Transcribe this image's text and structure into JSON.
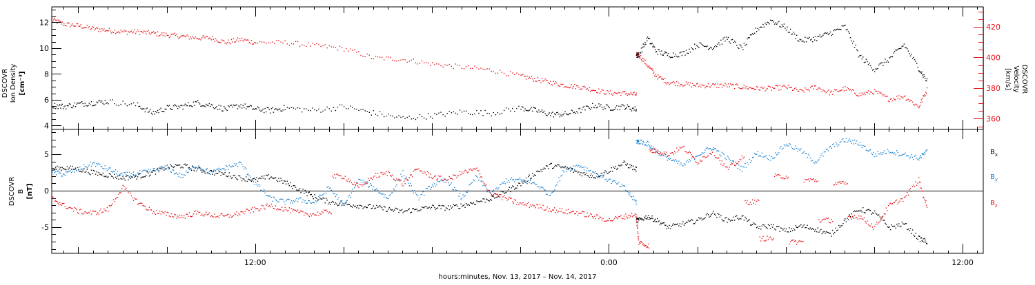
{
  "chart_data": [
    {
      "type": "scatter",
      "panel": "top",
      "x_unit": "hours from 2017-11-13 00:00",
      "xlim": [
        5.1,
        36.7
      ],
      "x_ticks": [
        12,
        24,
        36
      ],
      "x_tick_labels": [
        "12:00",
        "0:00",
        "12:00"
      ],
      "y_left": {
        "label_lines": [
          "DSCOVR",
          "Ion Density",
          "[cm⁻³]"
        ],
        "ylim": [
          3.7,
          13.2
        ],
        "ticks": [
          4,
          6,
          8,
          10,
          12
        ],
        "tick_labels": [
          "4",
          "6",
          "8",
          "10",
          "12"
        ],
        "color": "#000000"
      },
      "y_right": {
        "label_lines": [
          "DSCOVR",
          "Velocity",
          "[km/s]"
        ],
        "ylim": [
          353,
          433
        ],
        "ticks": [
          360,
          380,
          400,
          420
        ],
        "tick_labels": [
          "360",
          "380",
          "400",
          "420"
        ],
        "color": "#e8141b"
      },
      "series": [
        {
          "axis": "left",
          "color": "#000000",
          "x": [
            5.1,
            5.5,
            6.0,
            6.5,
            7.0,
            8.0,
            8.5,
            9.0,
            9.5,
            10.0,
            10.5,
            11.0,
            11.5,
            12.0,
            12.5,
            13.0,
            14.0,
            15.0,
            16.0,
            17.0,
            18.0,
            19.0,
            20.0,
            21.0,
            21.5,
            22.0,
            22.5,
            23.0,
            23.5,
            24.0,
            24.5,
            24.9,
            25.0,
            25.3,
            25.6,
            26.0,
            26.5,
            27.0,
            27.5,
            28.0,
            28.5,
            29.0,
            29.5,
            30.0,
            30.5,
            31.0,
            31.5,
            32.0,
            32.5,
            33.0,
            33.5,
            34.0,
            34.5,
            34.8
          ],
          "y": [
            5.6,
            5.5,
            5.7,
            5.8,
            5.9,
            5.6,
            5.0,
            5.4,
            5.5,
            5.8,
            5.6,
            5.3,
            5.6,
            5.3,
            5.2,
            5.4,
            5.2,
            5.5,
            5.0,
            4.6,
            4.8,
            5.1,
            5.0,
            5.4,
            5.2,
            4.9,
            4.9,
            5.2,
            5.6,
            5.4,
            5.5,
            5.3,
            9.5,
            10.8,
            9.8,
            9.5,
            9.6,
            10.3,
            10.1,
            10.8,
            10.0,
            11.5,
            12.2,
            11.6,
            10.6,
            10.8,
            11.2,
            11.7,
            9.4,
            8.4,
            9.2,
            10.3,
            8.5,
            7.4
          ]
        },
        {
          "axis": "right",
          "color": "#e8141b",
          "x": [
            5.1,
            5.5,
            6.0,
            6.5,
            7.0,
            7.5,
            8.0,
            8.5,
            9.0,
            9.5,
            10.0,
            10.5,
            11.0,
            11.5,
            12.0,
            13.0,
            14.0,
            15.0,
            16.0,
            17.0,
            18.0,
            19.0,
            20.0,
            21.0,
            21.5,
            22.0,
            22.5,
            23.0,
            23.5,
            24.0,
            24.5,
            24.9,
            25.0,
            25.3,
            25.6,
            26.0,
            26.5,
            27.0,
            27.5,
            28.0,
            28.5,
            29.0,
            29.5,
            30.0,
            30.5,
            31.0,
            31.5,
            32.0,
            32.5,
            33.0,
            33.5,
            34.0,
            34.5,
            34.8
          ],
          "y": [
            425,
            422,
            421,
            419,
            418,
            417,
            417,
            416,
            415,
            414,
            413,
            413,
            410,
            412,
            410,
            410,
            408,
            406,
            400,
            399,
            396,
            394,
            392,
            388,
            386,
            384,
            382,
            381,
            379,
            377,
            377,
            376,
            402,
            395,
            388,
            384,
            383,
            382,
            382,
            382,
            381,
            380,
            380,
            381,
            378,
            381,
            377,
            380,
            376,
            378,
            373,
            375,
            368,
            380
          ]
        }
      ]
    },
    {
      "type": "scatter",
      "panel": "bottom",
      "x_unit": "hours from 2017-11-13 00:00",
      "xlim": [
        5.1,
        36.7
      ],
      "x_ticks": [
        12,
        24,
        36
      ],
      "x_tick_labels": [
        "12:00",
        "0:00",
        "12:00"
      ],
      "xlabel": "hours:minutes, Nov. 13, 2017 – Nov. 14, 2017",
      "y_left": {
        "label_lines": [
          "DSCOVR",
          "B",
          "[nT]"
        ],
        "ylim": [
          -8.6,
          8.4
        ],
        "ticks": [
          -5,
          0,
          5
        ],
        "tick_labels": [
          "-5",
          "0",
          "5"
        ],
        "color": "#000000"
      },
      "zero_line": 0,
      "legend_position": "right",
      "series": [
        {
          "name": "Bx",
          "color": "#000000",
          "x": [
            5.1,
            5.5,
            6.0,
            6.5,
            7.0,
            7.5,
            8.0,
            8.5,
            9.0,
            9.5,
            10.0,
            10.5,
            11.0,
            11.5,
            12.0,
            12.5,
            13.0,
            13.5,
            14.0,
            14.5,
            15.0,
            15.5,
            16.0,
            16.5,
            17.0,
            17.5,
            18.0,
            18.5,
            19.0,
            19.5,
            20.0,
            20.5,
            21.0,
            21.5,
            22.0,
            22.5,
            23.0,
            23.5,
            24.0,
            24.5,
            24.9,
            25.0,
            25.3,
            25.6,
            26.0,
            26.5,
            27.0,
            27.5,
            28.0,
            28.5,
            29.0,
            29.5,
            30.0,
            30.5,
            31.0,
            31.5,
            32.0,
            32.5,
            33.0,
            33.5,
            34.0,
            34.5,
            34.8
          ],
          "y": [
            3.0,
            3.2,
            3.0,
            2.5,
            2.2,
            1.8,
            2.0,
            2.5,
            3.3,
            3.5,
            3.0,
            2.6,
            2.3,
            1.8,
            1.5,
            2.0,
            1.2,
            0.2,
            -0.8,
            -1.5,
            -1.8,
            -2.0,
            -2.2,
            -2.5,
            -2.8,
            -2.5,
            -2.2,
            -2.3,
            -2.0,
            -1.5,
            -1.0,
            0.0,
            1.0,
            2.5,
            3.5,
            3.2,
            2.5,
            2.0,
            2.8,
            3.8,
            3.0,
            -4.0,
            -3.5,
            -4.0,
            -5.0,
            -4.5,
            -4.0,
            -3.0,
            -4.0,
            -3.5,
            -5.0,
            -4.8,
            -5.5,
            -4.8,
            -5.2,
            -6.0,
            -4.0,
            -2.5,
            -3.0,
            -5.0,
            -4.5,
            -6.5,
            -7.0
          ]
        },
        {
          "name": "By",
          "color": "#1a82d1",
          "x": [
            5.1,
            5.5,
            6.0,
            6.5,
            7.0,
            7.5,
            8.0,
            8.5,
            9.0,
            9.5,
            10.0,
            10.5,
            11.0,
            11.5,
            12.0,
            12.5,
            13.0,
            13.5,
            14.0,
            14.5,
            15.0,
            15.5,
            16.0,
            16.5,
            17.0,
            17.5,
            18.0,
            18.5,
            19.0,
            19.5,
            20.0,
            20.5,
            21.0,
            21.5,
            22.0,
            22.5,
            23.0,
            23.5,
            24.0,
            24.5,
            24.9,
            25.0,
            25.3,
            25.6,
            26.0,
            26.5,
            27.0,
            27.5,
            28.0,
            28.5,
            29.0,
            29.5,
            30.0,
            30.5,
            31.0,
            31.5,
            32.0,
            32.5,
            33.0,
            33.5,
            34.0,
            34.5,
            34.8
          ],
          "y": [
            2.6,
            2.3,
            3.0,
            3.8,
            3.0,
            2.2,
            2.4,
            2.8,
            3.2,
            2.0,
            3.5,
            2.5,
            3.2,
            3.8,
            1.0,
            -1.0,
            -1.5,
            -1.2,
            -1.6,
            0.5,
            -2.0,
            1.5,
            0.5,
            -1.0,
            2.5,
            -1.0,
            0.8,
            1.5,
            -1.0,
            2.0,
            -0.5,
            1.5,
            1.5,
            1.0,
            -0.5,
            3.0,
            3.5,
            2.5,
            1.5,
            0.5,
            -1.5,
            6.8,
            6.5,
            5.5,
            4.5,
            3.5,
            5.0,
            6.0,
            4.5,
            3.0,
            5.2,
            4.5,
            6.5,
            5.5,
            4.0,
            6.0,
            7.0,
            6.5,
            5.0,
            5.5,
            5.0,
            4.5,
            5.5
          ]
        },
        {
          "name": "Bz",
          "color": "#e8141b",
          "x": [
            5.1,
            5.5,
            6.0,
            6.5,
            7.0,
            7.5,
            8.0,
            8.5,
            9.0,
            9.5,
            10.0,
            10.5,
            11.0,
            11.5,
            12.0,
            12.5,
            13.0,
            13.5,
            14.0,
            14.5,
            15.0,
            15.5,
            16.0,
            16.5,
            17.0,
            17.5,
            18.0,
            18.5,
            19.0,
            19.5,
            20.0,
            20.5,
            21.0,
            21.5,
            22.0,
            22.5,
            23.0,
            23.5,
            24.0,
            24.5,
            24.9,
            25.0,
            25.3,
            25.6,
            26.0,
            26.5,
            27.0,
            27.5,
            28.0,
            28.5,
            29.0,
            29.5,
            30.0,
            30.5,
            31.0,
            31.5,
            32.0,
            32.5,
            33.0,
            33.5,
            34.0,
            34.5,
            34.8
          ],
          "y": [
            -1.0,
            -2.0,
            -2.8,
            -3.0,
            -2.5,
            0.5,
            -1.5,
            -2.8,
            -3.2,
            -3.5,
            -3.0,
            -3.3,
            -3.5,
            -3.0,
            -2.5,
            -2.0,
            -2.5,
            -3.0,
            -3.2,
            -2.8,
            2.0,
            0.5,
            2.0,
            2.5,
            1.0,
            3.0,
            2.0,
            1.5,
            2.5,
            3.0,
            -0.5,
            -1.0,
            -1.8,
            -2.0,
            -2.5,
            -2.8,
            -3.0,
            -3.5,
            -4.0,
            -3.5,
            -3.2,
            -7.0,
            -7.5,
            5.5,
            5.0,
            6.0,
            4.0,
            5.5,
            3.0,
            4.5,
            -1.5,
            -6.5,
            2.0,
            -7.0,
            1.5,
            -4.0,
            1.0,
            -3.5,
            -5.0,
            -2.0,
            -1.0,
            1.5,
            -2.5
          ]
        }
      ]
    }
  ]
}
